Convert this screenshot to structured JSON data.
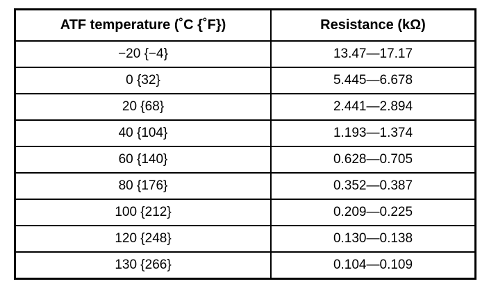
{
  "table": {
    "header": [
      "ATF temperature (˚C {˚F})",
      "Resistance (kΩ)"
    ],
    "rows": [
      [
        "−20 {−4}",
        "13.47—17.17"
      ],
      [
        "0 {32}",
        "5.445—6.678"
      ],
      [
        "20 {68}",
        "2.441—2.894"
      ],
      [
        "40 {104}",
        "1.193—1.374"
      ],
      [
        "60 {140}",
        "0.628—0.705"
      ],
      [
        "80 {176}",
        "0.352—0.387"
      ],
      [
        "100 {212}",
        "0.209—0.225"
      ],
      [
        "120 {248}",
        "0.130—0.138"
      ],
      [
        "130 {266}",
        "0.104—0.109"
      ]
    ]
  }
}
